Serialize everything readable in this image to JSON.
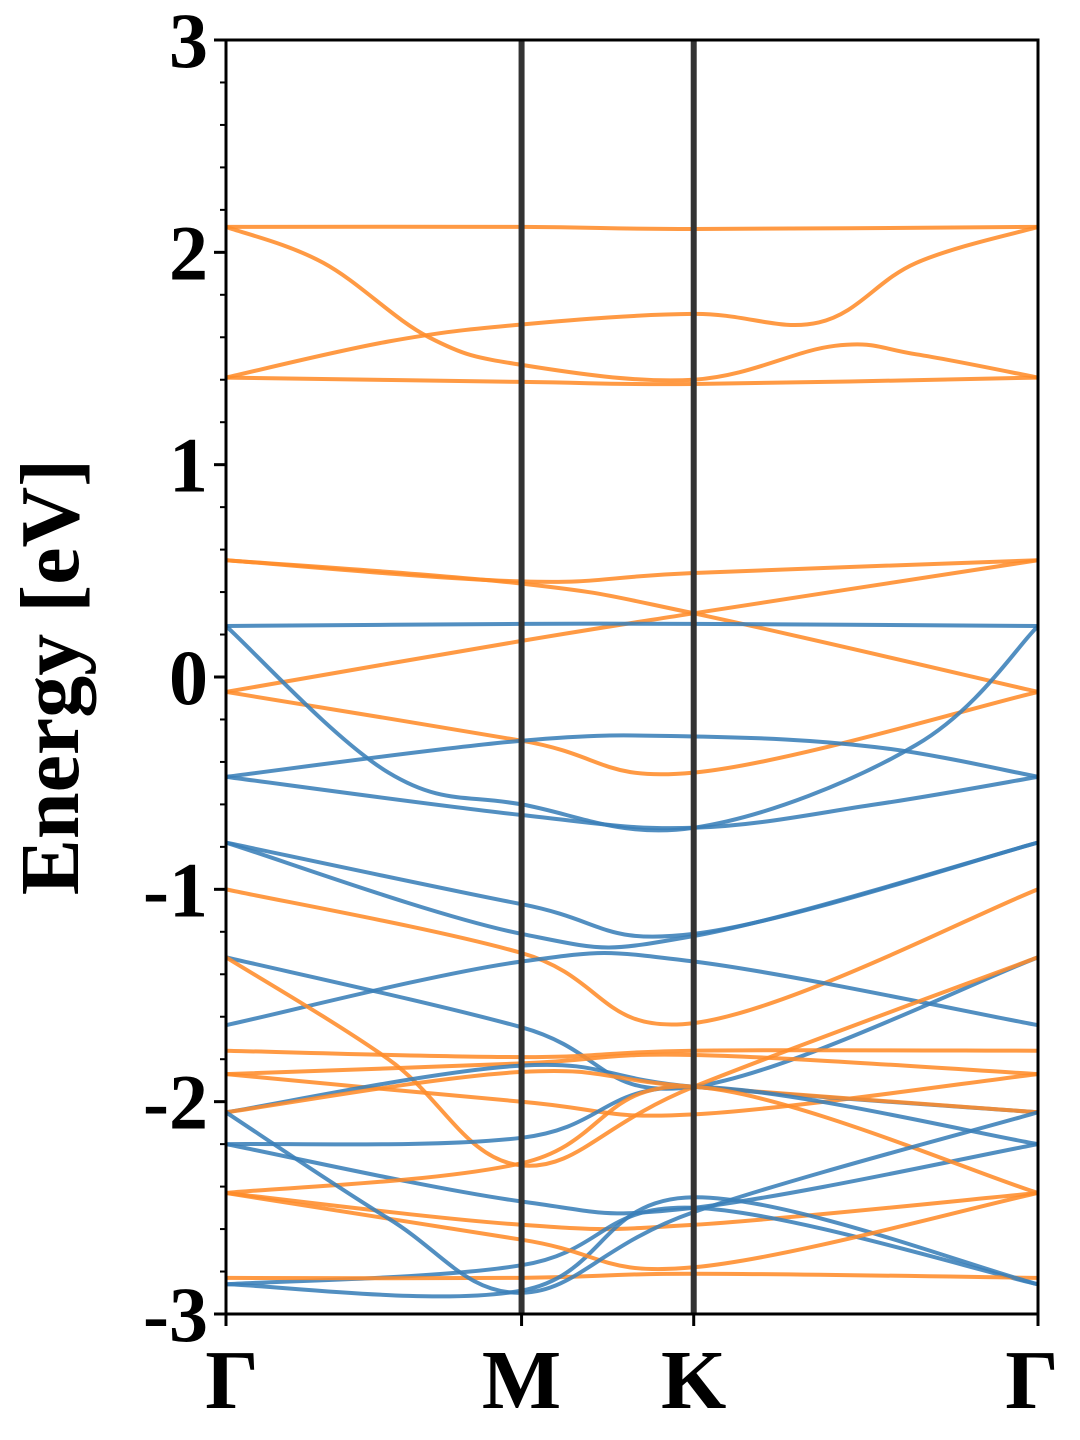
{
  "chart_data": {
    "type": "line",
    "title": "",
    "xlabel": "",
    "ylabel": "Energy [eV]",
    "ylim": [
      -3,
      3
    ],
    "xlim": [
      0,
      1
    ],
    "grid": false,
    "legend": "none",
    "yticks": [
      "-3",
      "-2",
      "-1",
      "0",
      "1",
      "2",
      "3"
    ],
    "kpoints": [
      {
        "label": "Γ",
        "x": 0.0
      },
      {
        "label": "M",
        "x": 0.364
      },
      {
        "label": "K",
        "x": 0.576
      },
      {
        "label": "Γ",
        "x": 1.0
      }
    ],
    "colors": {
      "blue": "#3a7fb8",
      "orange": "#ff8c2a",
      "kline": "#333333"
    },
    "series": [
      {
        "color": "orange",
        "x": [
          0,
          0.364,
          0.576,
          1
        ],
        "y": [
          2.12,
          2.12,
          2.11,
          2.12
        ]
      },
      {
        "color": "orange",
        "x": [
          0,
          0.12,
          0.25,
          0.364,
          0.576,
          0.75,
          0.85,
          1
        ],
        "y": [
          2.12,
          1.95,
          1.6,
          1.47,
          1.4,
          1.56,
          1.52,
          1.41
        ]
      },
      {
        "color": "orange",
        "x": [
          0,
          0.2,
          0.364,
          0.576,
          0.73,
          0.85,
          1
        ],
        "y": [
          1.41,
          1.58,
          1.66,
          1.71,
          1.67,
          1.95,
          2.12
        ]
      },
      {
        "color": "orange",
        "x": [
          0,
          0.364,
          0.576,
          1
        ],
        "y": [
          1.41,
          1.39,
          1.38,
          1.41
        ]
      },
      {
        "color": "orange",
        "x": [
          0,
          0.364,
          0.576,
          1
        ],
        "y": [
          0.55,
          0.45,
          0.49,
          0.55
        ]
      },
      {
        "color": "orange",
        "x": [
          0,
          0.364,
          0.576,
          1
        ],
        "y": [
          0.55,
          0.44,
          0.3,
          -0.07
        ]
      },
      {
        "color": "orange",
        "x": [
          0,
          0.364,
          0.576,
          1
        ],
        "y": [
          -0.07,
          0.17,
          0.3,
          0.55
        ]
      },
      {
        "color": "orange",
        "x": [
          0,
          0.364,
          0.576,
          1
        ],
        "y": [
          -0.07,
          -0.3,
          -0.45,
          -0.07
        ]
      },
      {
        "color": "blue",
        "x": [
          0,
          0.364,
          0.576,
          1
        ],
        "y": [
          0.24,
          0.25,
          0.25,
          0.24
        ]
      },
      {
        "color": "blue",
        "x": [
          0,
          0.2,
          0.364,
          0.576,
          0.85,
          1
        ],
        "y": [
          0.24,
          -0.45,
          -0.6,
          -0.71,
          -0.32,
          0.24
        ]
      },
      {
        "color": "blue",
        "x": [
          0,
          0.364,
          0.576,
          0.8,
          1
        ],
        "y": [
          -0.47,
          -0.3,
          -0.28,
          -0.33,
          -0.47
        ]
      },
      {
        "color": "blue",
        "x": [
          0,
          0.364,
          0.576,
          0.8,
          1
        ],
        "y": [
          -0.47,
          -0.65,
          -0.71,
          -0.6,
          -0.47
        ]
      },
      {
        "color": "blue",
        "x": [
          0,
          0.364,
          0.576,
          1
        ],
        "y": [
          -0.78,
          -1.07,
          -1.21,
          -0.78
        ]
      },
      {
        "color": "blue",
        "x": [
          0,
          0.364,
          0.576,
          1
        ],
        "y": [
          -0.78,
          -1.21,
          -1.22,
          -0.78
        ]
      },
      {
        "color": "orange",
        "x": [
          0,
          0.364,
          0.576,
          1
        ],
        "y": [
          -1.0,
          -1.3,
          -1.63,
          -1.0
        ]
      },
      {
        "color": "blue",
        "x": [
          0,
          0.364,
          0.576,
          1
        ],
        "y": [
          -1.64,
          -1.34,
          -1.34,
          -1.64
        ]
      },
      {
        "color": "blue",
        "x": [
          0,
          0.364,
          0.576,
          1
        ],
        "y": [
          -1.32,
          -1.65,
          -1.93,
          -1.32
        ]
      },
      {
        "color": "orange",
        "x": [
          0,
          0.2,
          0.364,
          0.576,
          1
        ],
        "y": [
          -1.32,
          -1.8,
          -2.3,
          -1.93,
          -1.32
        ]
      },
      {
        "color": "orange",
        "x": [
          0,
          0.364,
          0.576,
          1
        ],
        "y": [
          -1.76,
          -1.79,
          -1.76,
          -1.76
        ]
      },
      {
        "color": "orange",
        "x": [
          0,
          0.364,
          0.576,
          1
        ],
        "y": [
          -1.87,
          -1.82,
          -1.78,
          -1.87
        ]
      },
      {
        "color": "orange",
        "x": [
          0,
          0.364,
          0.576,
          1
        ],
        "y": [
          -1.87,
          -2.0,
          -2.06,
          -1.87
        ]
      },
      {
        "color": "blue",
        "x": [
          0,
          0.364,
          0.576,
          1
        ],
        "y": [
          -2.05,
          -1.83,
          -1.93,
          -2.05
        ]
      },
      {
        "color": "orange",
        "x": [
          0,
          0.364,
          0.576,
          1
        ],
        "y": [
          -2.05,
          -1.86,
          -1.93,
          -2.05
        ]
      },
      {
        "color": "blue",
        "x": [
          0,
          0.364,
          0.576,
          1
        ],
        "y": [
          -2.2,
          -2.17,
          -1.93,
          -2.2
        ]
      },
      {
        "color": "blue",
        "x": [
          0,
          0.364,
          0.576,
          1
        ],
        "y": [
          -2.2,
          -2.47,
          -2.5,
          -2.2
        ]
      },
      {
        "color": "orange",
        "x": [
          0,
          0.364,
          0.576,
          1
        ],
        "y": [
          -2.43,
          -2.58,
          -2.58,
          -2.43
        ]
      },
      {
        "color": "blue",
        "x": [
          0,
          0.364,
          0.576,
          1
        ],
        "y": [
          -2.86,
          -2.77,
          -2.5,
          -2.86
        ]
      },
      {
        "color": "orange",
        "x": [
          0,
          0.364,
          0.576,
          1
        ],
        "y": [
          -2.83,
          -2.83,
          -2.81,
          -2.83
        ]
      },
      {
        "color": "orange",
        "x": [
          0,
          0.364,
          0.576,
          1
        ],
        "y": [
          -2.43,
          -2.29,
          -1.93,
          -2.43
        ]
      },
      {
        "color": "blue",
        "x": [
          0,
          0.364,
          0.576,
          1
        ],
        "y": [
          -2.86,
          -2.89,
          -2.45,
          -2.86
        ]
      },
      {
        "color": "orange",
        "x": [
          0,
          0.364,
          0.576,
          1
        ],
        "y": [
          -2.43,
          -2.65,
          -2.78,
          -2.43
        ]
      },
      {
        "color": "blue",
        "x": [
          0,
          0.2,
          0.364,
          0.576,
          1
        ],
        "y": [
          -2.05,
          -2.55,
          -2.9,
          -2.52,
          -2.05
        ]
      }
    ]
  }
}
